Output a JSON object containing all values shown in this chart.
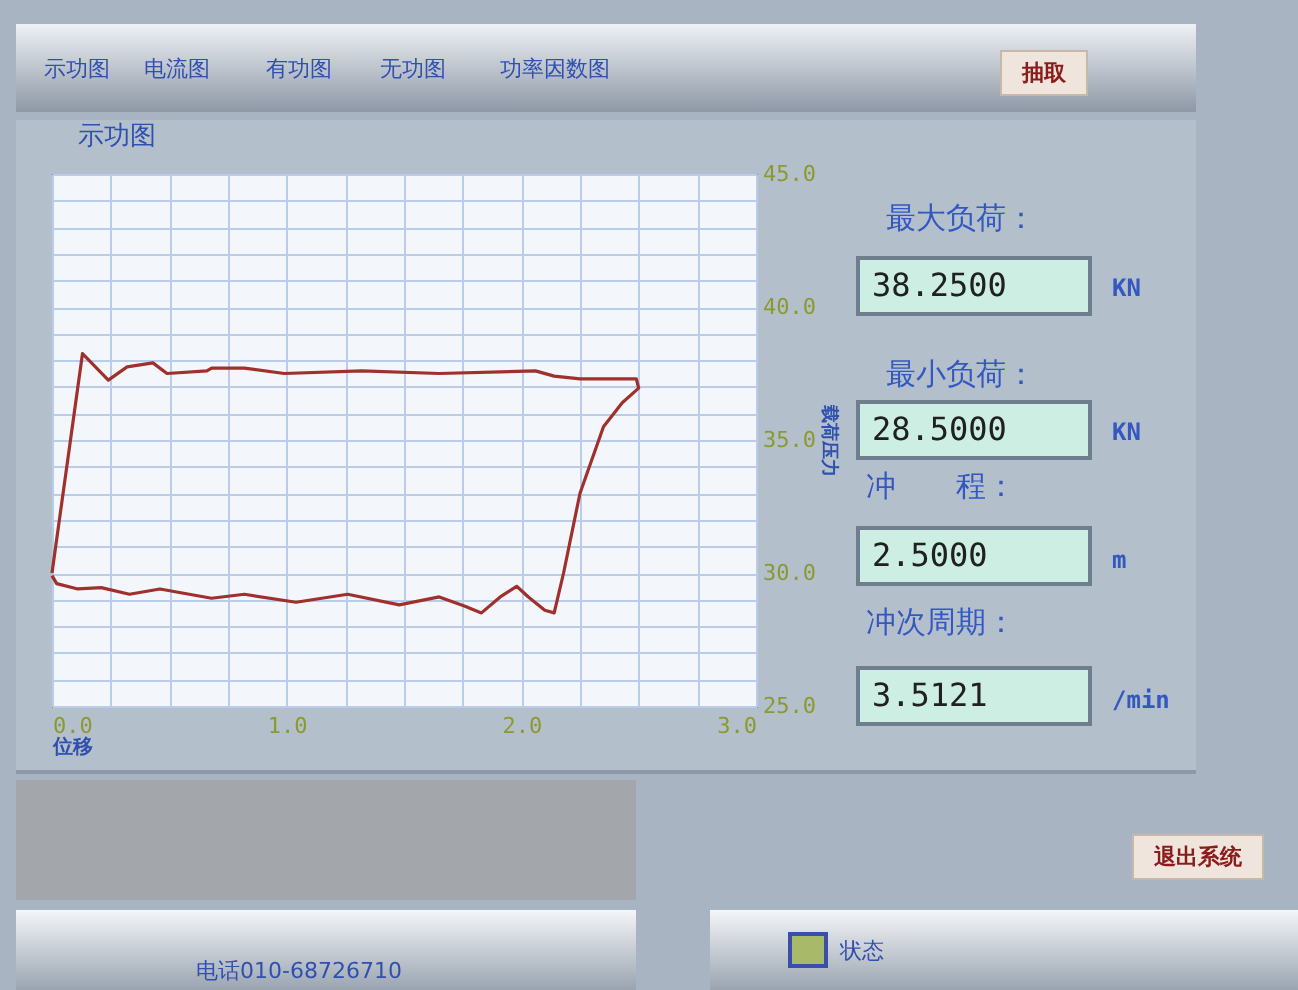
{
  "chart_data": [
    {
      "type": "line",
      "title": "示功图",
      "xlabel": "位移",
      "ylabel": "载荷压力",
      "grid": true,
      "x": [
        0,
        0.13,
        0.24,
        0.32,
        0.43,
        0.49,
        0.66,
        0.68,
        0.82,
        0.99,
        1.32,
        1.65,
        2.06,
        2.14,
        2.25,
        2.49,
        2.5,
        2.43,
        2.35,
        2.25,
        2.18,
        2.14,
        2.1,
        2.03,
        1.98,
        1.91,
        1.83,
        1.76,
        1.65,
        1.48,
        1.26,
        1.04,
        0.82,
        0.68,
        0.46,
        0.33,
        0.21,
        0.11,
        0.02,
        0
      ],
      "series": [
        {
          "color": "#a0302c",
          "values": [
            30.0,
            38.25,
            37.25,
            37.75,
            37.9,
            37.5,
            37.6,
            37.7,
            37.7,
            37.5,
            37.6,
            37.5,
            37.6,
            37.4,
            37.3,
            37.3,
            36.95,
            36.4,
            35.5,
            33.0,
            30.0,
            28.5,
            28.6,
            29.1,
            29.5,
            29.1,
            28.5,
            28.75,
            29.1,
            28.8,
            29.2,
            28.9,
            29.2,
            29.05,
            29.4,
            29.2,
            29.45,
            29.4,
            29.6,
            29.9
          ]
        }
      ],
      "xlim": [
        0,
        3
      ],
      "xticks": [
        {
          "value": 0,
          "label": "0.0"
        },
        {
          "value": 0.25,
          "label": null
        },
        {
          "value": 0.5,
          "label": null
        },
        {
          "value": 0.75,
          "label": null
        },
        {
          "value": 1,
          "label": "1.0"
        },
        {
          "value": 1.25,
          "label": null
        },
        {
          "value": 1.5,
          "label": null
        },
        {
          "value": 1.75,
          "label": null
        },
        {
          "value": 2,
          "label": "2.0"
        },
        {
          "value": 2.25,
          "label": null
        },
        {
          "value": 2.5,
          "label": null
        },
        {
          "value": 2.75,
          "label": null
        },
        {
          "value": 3,
          "label": "3.0"
        }
      ],
      "ylim": [
        25,
        45
      ],
      "yticks": [
        {
          "value": 25,
          "label": "25.0"
        },
        {
          "value": 26,
          "label": null
        },
        {
          "value": 27,
          "label": null
        },
        {
          "value": 28,
          "label": null
        },
        {
          "value": 29,
          "label": null
        },
        {
          "value": 30,
          "label": "30.0"
        },
        {
          "value": 31,
          "label": null
        },
        {
          "value": 32,
          "label": null
        },
        {
          "value": 33,
          "label": null
        },
        {
          "value": 34,
          "label": null
        },
        {
          "value": 35,
          "label": "35.0"
        },
        {
          "value": 36,
          "label": null
        },
        {
          "value": 37,
          "label": null
        },
        {
          "value": 38,
          "label": null
        },
        {
          "value": 39,
          "label": null
        },
        {
          "value": 40,
          "label": "40.0"
        },
        {
          "value": 41,
          "label": null
        },
        {
          "value": 42,
          "label": null
        },
        {
          "value": 43,
          "label": null
        },
        {
          "value": 44,
          "label": null
        },
        {
          "value": 45,
          "label": "45.0"
        }
      ]
    },
    {
      "type": "other",
      "annotations": [
        "示功图",
        "电流图",
        "有功图",
        "无功图",
        "功率因数图",
        "抽取",
        "最大负荷：",
        "38.2500",
        "KN",
        "最小负荷：",
        "28.5000",
        "KN",
        "冲　　程：",
        "2.5000",
        "m",
        "冲次周期：",
        "3.5121",
        "/min",
        "退出系统",
        "电话010-68726710",
        "状态"
      ]
    }
  ]
}
